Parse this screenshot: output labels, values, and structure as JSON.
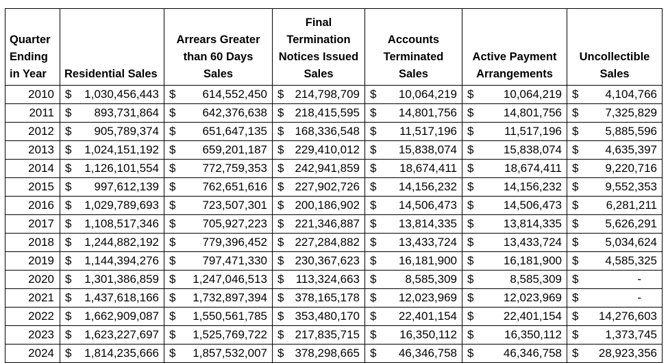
{
  "chart_data": {
    "type": "table",
    "title": "",
    "currency": "$",
    "empty_value": "-",
    "columns": [
      {
        "key": "quarter_ending_in_year",
        "header_lines": [
          "Quarter",
          "Ending",
          "in Year"
        ]
      },
      {
        "key": "residential_sales",
        "header_lines": [
          "Residential Sales"
        ]
      },
      {
        "key": "arrears_greater_than_60_days_sales",
        "header_lines": [
          "Arrears Greater",
          "than 60 Days",
          "Sales"
        ]
      },
      {
        "key": "final_termination_notices_issued_sales",
        "header_lines": [
          "Final",
          "Termination",
          "Notices Issued",
          "Sales"
        ]
      },
      {
        "key": "accounts_terminated_sales",
        "header_lines": [
          "Accounts",
          "Terminated",
          "Sales"
        ]
      },
      {
        "key": "active_payment_arrangements",
        "header_lines": [
          "Active Payment",
          "Arrangements"
        ]
      },
      {
        "key": "uncollectible_sales",
        "header_lines": [
          "Uncollectible",
          "Sales"
        ]
      }
    ],
    "rows": [
      {
        "year": "2010",
        "values": [
          "1,030,456,443",
          "614,552,450",
          "214,798,709",
          "10,064,219",
          "10,064,219",
          "4,104,766"
        ]
      },
      {
        "year": "2011",
        "values": [
          "893,731,864",
          "642,376,638",
          "218,415,595",
          "14,801,756",
          "14,801,756",
          "7,325,829"
        ]
      },
      {
        "year": "2012",
        "values": [
          "905,789,374",
          "651,647,135",
          "168,336,548",
          "11,517,196",
          "11,517,196",
          "5,885,596"
        ]
      },
      {
        "year": "2013",
        "values": [
          "1,024,151,192",
          "659,201,187",
          "229,410,012",
          "15,838,074",
          "15,838,074",
          "4,635,397"
        ]
      },
      {
        "year": "2014",
        "values": [
          "1,126,101,554",
          "772,759,353",
          "242,941,859",
          "18,674,411",
          "18,674,411",
          "9,220,716"
        ]
      },
      {
        "year": "2015",
        "values": [
          "997,612,139",
          "762,651,616",
          "227,902,726",
          "14,156,232",
          "14,156,232",
          "9,552,353"
        ]
      },
      {
        "year": "2016",
        "values": [
          "1,029,789,693",
          "723,507,301",
          "200,186,902",
          "14,506,473",
          "14,506,473",
          "6,281,211"
        ]
      },
      {
        "year": "2017",
        "values": [
          "1,108,517,346",
          "705,927,223",
          "221,346,887",
          "13,814,335",
          "13,814,335",
          "5,626,291"
        ]
      },
      {
        "year": "2018",
        "values": [
          "1,244,882,192",
          "779,396,452",
          "227,284,882",
          "13,433,724",
          "13,433,724",
          "5,034,624"
        ]
      },
      {
        "year": "2019",
        "values": [
          "1,144,394,276",
          "797,471,330",
          "230,367,623",
          "16,181,900",
          "16,181,900",
          "4,585,325"
        ]
      },
      {
        "year": "2020",
        "values": [
          "1,301,386,859",
          "1,247,046,513",
          "113,324,663",
          "8,585,309",
          "8,585,309",
          "-"
        ]
      },
      {
        "year": "2021",
        "values": [
          "1,437,618,166",
          "1,732,897,394",
          "378,165,178",
          "12,023,969",
          "12,023,969",
          "-"
        ]
      },
      {
        "year": "2022",
        "values": [
          "1,662,909,087",
          "1,550,561,785",
          "353,480,170",
          "22,401,154",
          "22,401,154",
          "14,276,603"
        ]
      },
      {
        "year": "2023",
        "values": [
          "1,623,227,697",
          "1,525,769,722",
          "217,835,715",
          "16,350,112",
          "16,350,112",
          "1,373,745"
        ]
      },
      {
        "year": "2024",
        "values": [
          "1,814,235,666",
          "1,857,532,007",
          "378,298,665",
          "46,346,758",
          "46,346,758",
          "28,923,356"
        ]
      }
    ]
  }
}
